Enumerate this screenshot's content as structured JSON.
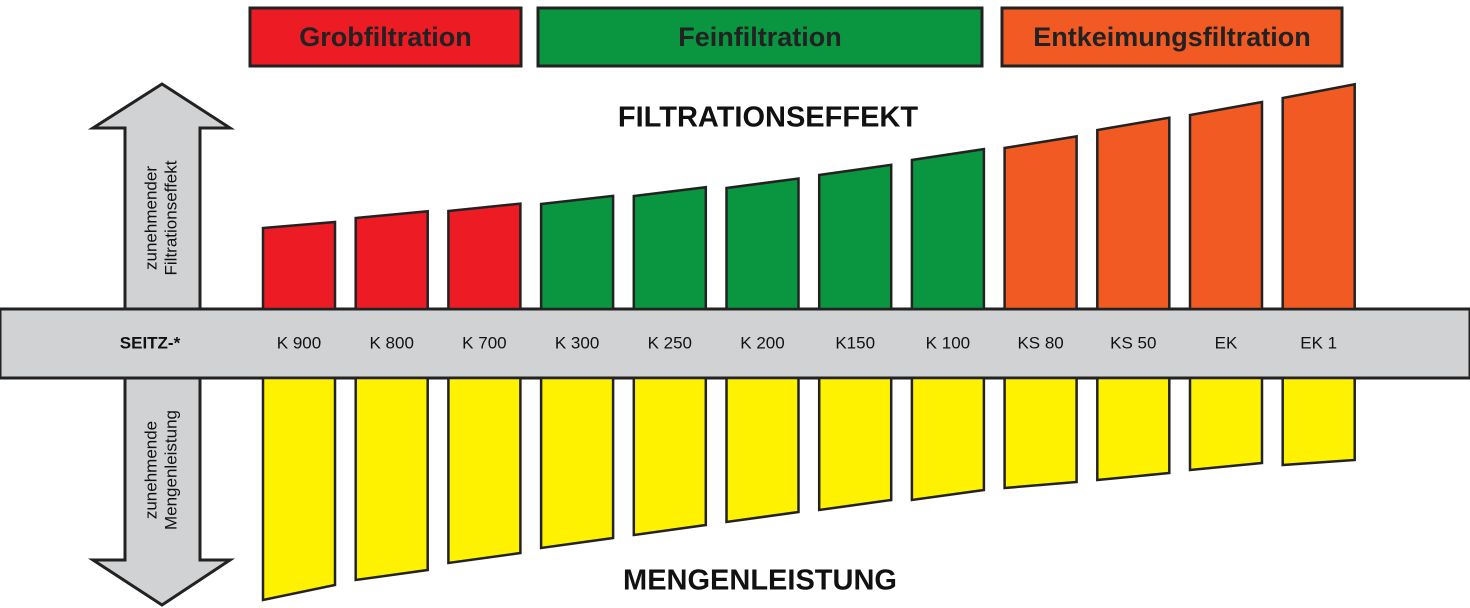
{
  "title_top": "FILTRATIONSEFFEKT",
  "title_bottom": "MENGENLEISTUNG",
  "arrow_up": [
    "zunehmender",
    "Filtrationseffekt"
  ],
  "arrow_down": [
    "zunehmende",
    "Mengenleistung"
  ],
  "band_label": "SEITZ-*",
  "groups": [
    {
      "label": "Grobfiltration",
      "items": [
        "K 900",
        "K 800",
        "K 700"
      ]
    },
    {
      "label": "Feinfiltration",
      "items": [
        "K 300",
        "K 250",
        "K 200",
        "K150",
        "K 100"
      ]
    },
    {
      "label": "Entkeimungsfiltration",
      "items": [
        "KS 80",
        "KS 50",
        "EK",
        "EK 1"
      ]
    }
  ]
}
